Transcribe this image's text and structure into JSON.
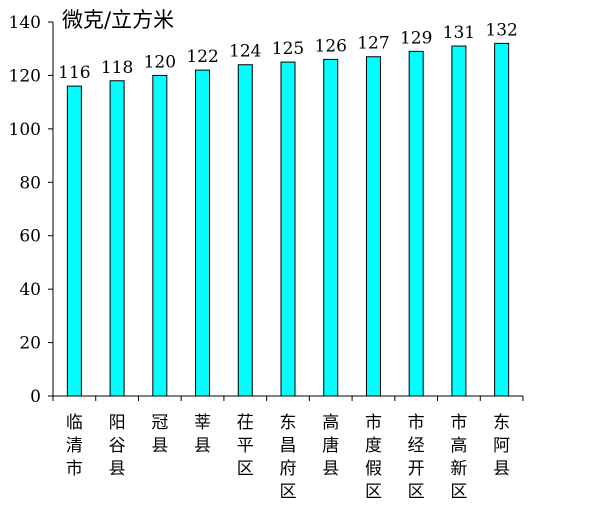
{
  "chart_data": {
    "type": "bar",
    "unit_label": "微克/立方米",
    "categories": [
      "临清市",
      "阳谷县",
      "冠县",
      "莘县",
      "茌平区",
      "东昌府区",
      "高唐县",
      "市度假区",
      "市经开区",
      "市高新区",
      "东阿县"
    ],
    "values": [
      116,
      118,
      120,
      122,
      124,
      125,
      126,
      127,
      129,
      131,
      132
    ],
    "value_labels": [
      "116",
      "118",
      "120",
      "122",
      "124",
      "125",
      "126",
      "127",
      "129",
      "131",
      "132"
    ],
    "ylim": [
      0,
      140
    ],
    "yticks": [
      0,
      20,
      40,
      60,
      80,
      100,
      120,
      140
    ],
    "ytick_labels": [
      "0",
      "20",
      "40",
      "60",
      "80",
      "100",
      "120",
      "140"
    ],
    "bar_color": "#00FFFF",
    "bar_edge_color": "#000000",
    "grid": false,
    "legend": "none"
  }
}
